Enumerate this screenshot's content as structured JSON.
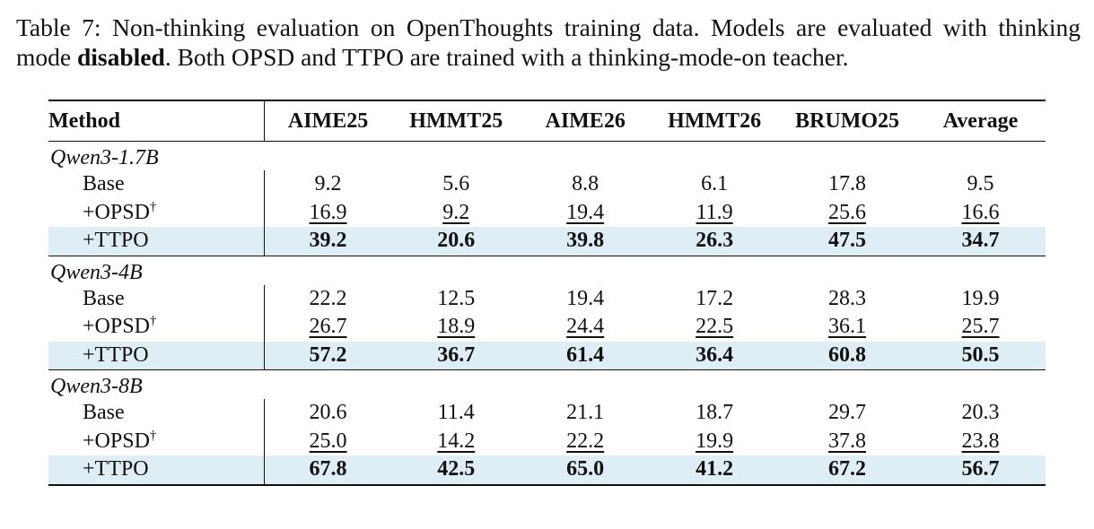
{
  "caption": {
    "text_before_bold": "Table 7: Non-thinking evaluation on OpenThoughts training data. Models are evaluated with thinking mode ",
    "bold": "disabled",
    "text_after_bold": ". Both OPSD and TTPO are trained with a thinking-mode-on teacher."
  },
  "table": {
    "headers": [
      "Method",
      "AIME25",
      "HMMT25",
      "AIME26",
      "HMMT26",
      "BRUMO25",
      "Average"
    ],
    "groups": [
      {
        "name": "Qwen3-1.7B",
        "rows": [
          {
            "method": "Base",
            "dagger": "",
            "values": [
              "9.2",
              "5.6",
              "8.8",
              "6.1",
              "17.8",
              "9.5"
            ]
          },
          {
            "method": "+OPSD",
            "dagger": "†",
            "values": [
              "16.9",
              "9.2",
              "19.4",
              "11.9",
              "25.6",
              "16.6"
            ]
          },
          {
            "method": "+TTPO",
            "dagger": "",
            "values": [
              "39.2",
              "20.6",
              "39.8",
              "26.3",
              "47.5",
              "34.7"
            ]
          }
        ]
      },
      {
        "name": "Qwen3-4B",
        "rows": [
          {
            "method": "Base",
            "dagger": "",
            "values": [
              "22.2",
              "12.5",
              "19.4",
              "17.2",
              "28.3",
              "19.9"
            ]
          },
          {
            "method": "+OPSD",
            "dagger": "†",
            "values": [
              "26.7",
              "18.9",
              "24.4",
              "22.5",
              "36.1",
              "25.7"
            ]
          },
          {
            "method": "+TTPO",
            "dagger": "",
            "values": [
              "57.2",
              "36.7",
              "61.4",
              "36.4",
              "60.8",
              "50.5"
            ]
          }
        ]
      },
      {
        "name": "Qwen3-8B",
        "rows": [
          {
            "method": "Base",
            "dagger": "",
            "values": [
              "20.6",
              "11.4",
              "21.1",
              "18.7",
              "29.7",
              "20.3"
            ]
          },
          {
            "method": "+OPSD",
            "dagger": "†",
            "values": [
              "25.0",
              "14.2",
              "22.2",
              "19.9",
              "37.8",
              "23.8"
            ]
          },
          {
            "method": "+TTPO",
            "dagger": "",
            "values": [
              "67.8",
              "42.5",
              "65.0",
              "41.2",
              "67.2",
              "56.7"
            ]
          }
        ]
      }
    ]
  },
  "colors": {
    "highlight_row": "#dfedf5",
    "rule": "#111111"
  }
}
